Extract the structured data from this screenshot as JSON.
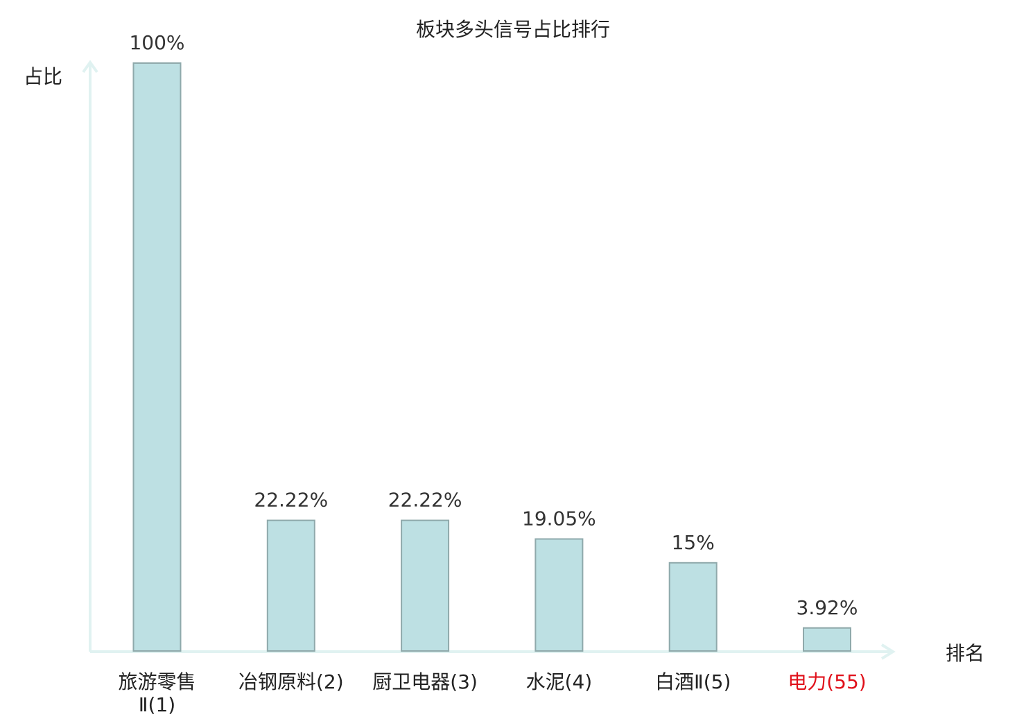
{
  "chart_data": {
    "type": "bar",
    "title": "板块多头信号占比排行",
    "ylabel": "占比",
    "xlabel": "排名",
    "categories": [
      {
        "name": "旅游零售Ⅱ",
        "rank": "(1)",
        "lines": [
          "旅游零售",
          "Ⅱ(1)"
        ],
        "highlight": false
      },
      {
        "name": "冶钢原料",
        "rank": "(2)",
        "lines": [
          "冶钢原料(2)"
        ],
        "highlight": false
      },
      {
        "name": "厨卫电器",
        "rank": "(3)",
        "lines": [
          "厨卫电器(3)"
        ],
        "highlight": false
      },
      {
        "name": "水泥",
        "rank": "(4)",
        "lines": [
          "水泥(4)"
        ],
        "highlight": false
      },
      {
        "name": "白酒Ⅱ",
        "rank": "(5)",
        "lines": [
          "白酒Ⅱ(5)"
        ],
        "highlight": false
      },
      {
        "name": "电力",
        "rank": "(55)",
        "lines": [
          "电力(55)"
        ],
        "highlight": true
      }
    ],
    "values": [
      100,
      22.22,
      22.22,
      19.05,
      15,
      3.92
    ],
    "value_labels": [
      "100%",
      "22.22%",
      "22.22%",
      "19.05%",
      "15%",
      "3.92%"
    ],
    "ylim": [
      0,
      100
    ],
    "grid": false,
    "colors": {
      "bar_fill": "#bde0e3",
      "bar_stroke": "#8fa9ab",
      "axis": "#e0f2f1",
      "text": "#222222",
      "highlight": "#e0101a"
    }
  }
}
